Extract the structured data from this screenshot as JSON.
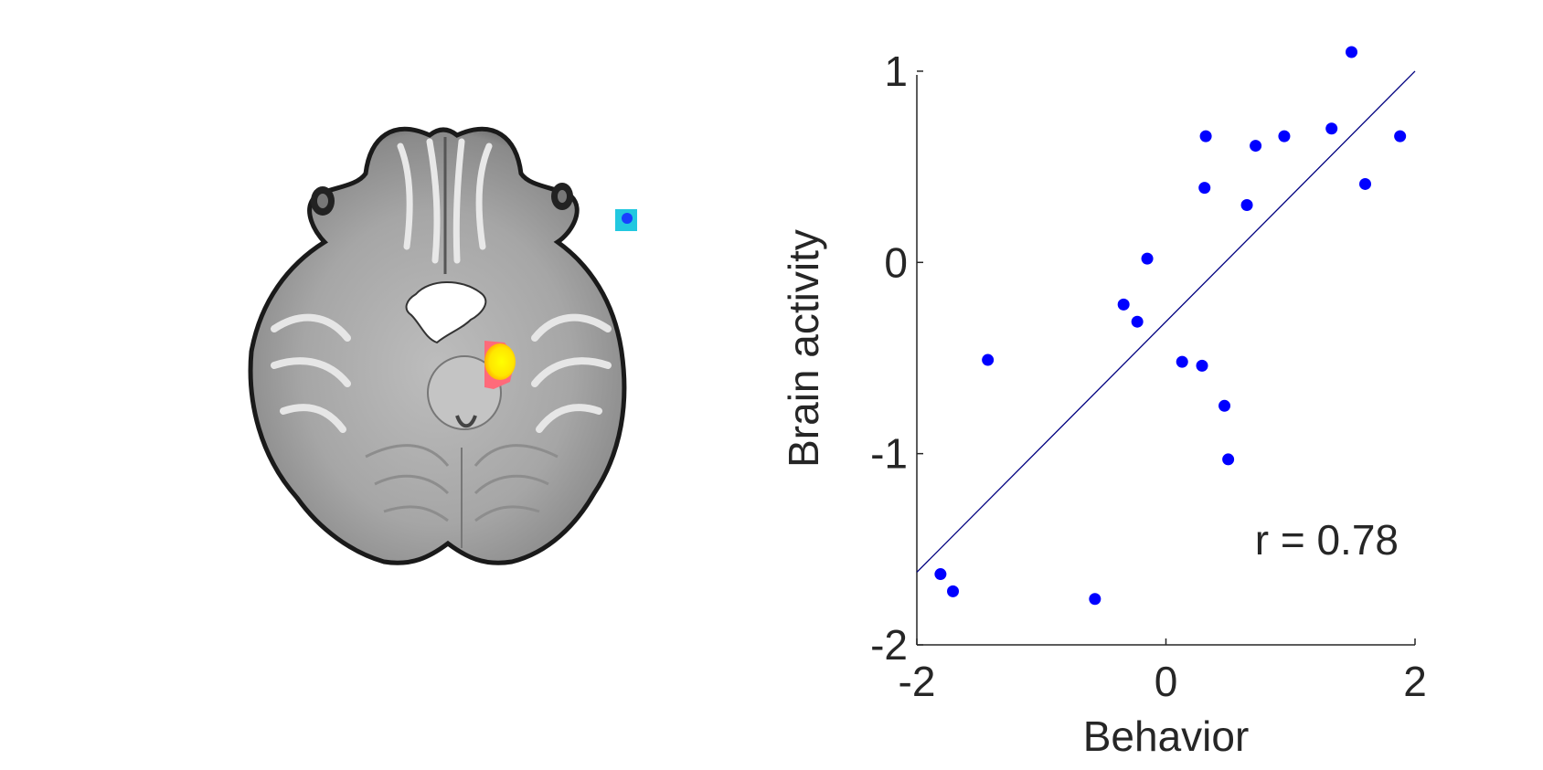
{
  "brain_image": {
    "view": "axial",
    "cluster_colors": {
      "positive": "#ffee00",
      "positive_edge": "#ff5a6e",
      "negative": "#1840ff",
      "negative_edge": "#22c8e0"
    }
  },
  "chart_data": {
    "type": "scatter",
    "xlabel": "Behavior",
    "ylabel": "Brain activity",
    "xlim": [
      -2,
      2
    ],
    "ylim": [
      -2,
      1.1
    ],
    "xticks": [
      "-2",
      "0",
      "2"
    ],
    "yticks": [
      "1",
      "0",
      "-1",
      "-2"
    ],
    "x_tick_values": [
      -2,
      0,
      2
    ],
    "y_tick_values": [
      1,
      0,
      -1,
      -2
    ],
    "point_color": "#0000ff",
    "line_color": "#000080",
    "fit_line": {
      "x": [
        -2,
        2
      ],
      "y": [
        -1.62,
        1.0
      ]
    },
    "annotation": "r = 0.78",
    "annotation_position": "bottom-right",
    "grid": false,
    "points": [
      {
        "x": -1.81,
        "y": -1.63
      },
      {
        "x": -1.71,
        "y": -1.72
      },
      {
        "x": -1.43,
        "y": -0.51
      },
      {
        "x": -0.57,
        "y": -1.76
      },
      {
        "x": -0.34,
        "y": -0.22
      },
      {
        "x": -0.23,
        "y": -0.31
      },
      {
        "x": -0.15,
        "y": 0.02
      },
      {
        "x": 0.13,
        "y": -0.52
      },
      {
        "x": 0.29,
        "y": -0.54
      },
      {
        "x": 0.31,
        "y": 0.39
      },
      {
        "x": 0.32,
        "y": 0.66
      },
      {
        "x": 0.47,
        "y": -0.75
      },
      {
        "x": 0.5,
        "y": -1.03
      },
      {
        "x": 0.65,
        "y": 0.3
      },
      {
        "x": 0.72,
        "y": 0.61
      },
      {
        "x": 0.95,
        "y": 0.66
      },
      {
        "x": 1.33,
        "y": 0.7
      },
      {
        "x": 1.49,
        "y": 1.1
      },
      {
        "x": 1.6,
        "y": 0.41
      },
      {
        "x": 1.88,
        "y": 0.66
      }
    ]
  }
}
